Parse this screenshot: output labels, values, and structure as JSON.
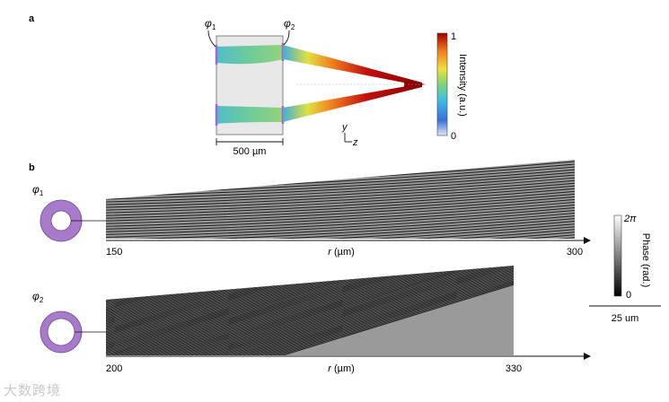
{
  "panel_a": {
    "label": "a",
    "phi1_base": "φ",
    "phi1_sub": "1",
    "phi2_base": "φ",
    "phi2_sub": "2",
    "scale_label": "500 µm",
    "axis_y": "y",
    "axis_z": "z",
    "colorbar": {
      "title": "Intensity (a.u.)",
      "max": "1",
      "min": "0"
    }
  },
  "panel_b": {
    "label": "b",
    "row1": {
      "phi_base": "φ",
      "phi_sub": "1",
      "axis_label_italic": "r",
      "axis_label_rest": " (µm)",
      "tick_start": "150",
      "tick_end": "300"
    },
    "row2": {
      "phi_base": "φ",
      "phi_sub": "2",
      "axis_label_italic": "r",
      "axis_label_rest": " (µm)",
      "tick_start": "200",
      "tick_end": "330"
    },
    "phase_bar": {
      "title": "Phase (rad.)",
      "max": "2π",
      "min": "0"
    },
    "scale_label": "25 um"
  },
  "watermark": "大数跨境",
  "colors": {
    "ring": "#a77bc9",
    "ring_stroke": "#6b4a88",
    "lens_box": "#e6e6e6",
    "beam_red": "#b40000",
    "accent_purple": "#9a6cc7"
  }
}
